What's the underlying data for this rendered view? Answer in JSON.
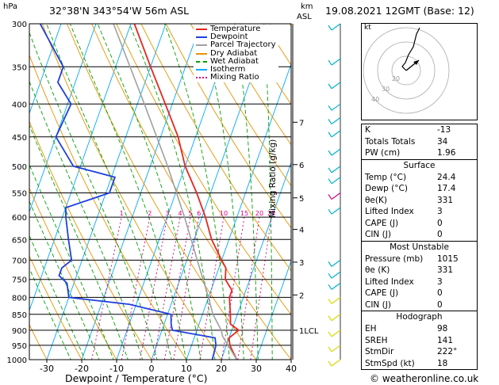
{
  "header": {
    "hpa_label": "hPa",
    "location": "32°38'N  343°54'W  56m  ASL",
    "km_label": "km",
    "asl_label": "ASL",
    "datetime": "19.08.2021  12GMT  (Base: 12)"
  },
  "legend": [
    "Temperature",
    "Dewpoint",
    "Parcel Trajectory",
    "Dry Adiabat",
    "Wet Adiabat",
    "Isotherm",
    "Mixing Ratio"
  ],
  "colors": {
    "temperature": "#e8251f",
    "dewpoint": "#1d3fe0",
    "parcel": "#a0a0a0",
    "dry_adiabat": "#e69500",
    "wet_adiabat": "#00a000",
    "isotherm": "#00aaff",
    "mixing_ratio": "#d4007f",
    "wind": "#00b4c8",
    "wind_low": "#d8d800"
  },
  "mixing_ratio_labels": [
    "1",
    "2",
    "3",
    "4",
    "5",
    "6",
    "10",
    "15",
    "20",
    "25"
  ],
  "right_axis_label": "Mixing Ratio (g/kg)",
  "km_ticks": [
    "7",
    "6",
    "5",
    "4",
    "3",
    "2",
    "1LCL"
  ],
  "x_axis_title": "Dewpoint / Temperature (°C)",
  "hodograph": {
    "label": "kt",
    "rings": [
      "40",
      "30",
      "20"
    ]
  },
  "indices": [
    {
      "label": "K",
      "value": "-13"
    },
    {
      "label": "Totals Totals",
      "value": "34"
    },
    {
      "label": "PW (cm)",
      "value": "1.96"
    }
  ],
  "surface": {
    "title": "Surface",
    "rows": [
      {
        "label": "Temp (°C)",
        "value": "24.4"
      },
      {
        "label": "Dewp (°C)",
        "value": "17.4"
      },
      {
        "label": "θe(K)",
        "value": "331"
      },
      {
        "label": "Lifted Index",
        "value": "3"
      },
      {
        "label": "CAPE (J)",
        "value": "0"
      },
      {
        "label": "CIN (J)",
        "value": "0"
      }
    ]
  },
  "most_unstable": {
    "title": "Most Unstable",
    "rows": [
      {
        "label": "Pressure (mb)",
        "value": "1015"
      },
      {
        "label": "θe (K)",
        "value": "331"
      },
      {
        "label": "Lifted Index",
        "value": "3"
      },
      {
        "label": "CAPE (J)",
        "value": "0"
      },
      {
        "label": "CIN (J)",
        "value": "0"
      }
    ]
  },
  "hodograph_box": {
    "title": "Hodograph",
    "rows": [
      {
        "label": "EH",
        "value": "98"
      },
      {
        "label": "SREH",
        "value": "141"
      },
      {
        "label": "StmDir",
        "value": "222°"
      },
      {
        "label": "StmSpd (kt)",
        "value": "18"
      }
    ]
  },
  "copyright": "© weatheronline.co.uk",
  "chart_data": {
    "type": "line",
    "title": "32°38'N  343°54'W  56m  ASL",
    "xlabel": "Dewpoint / Temperature (°C)",
    "ylabel": "hPa",
    "xlim": [
      -35,
      40
    ],
    "ylim": [
      1000,
      300
    ],
    "x_ticks": [
      "-30",
      "-20",
      "-10",
      "0",
      "10",
      "20",
      "30",
      "40"
    ],
    "pressure_levels": [
      "300",
      "350",
      "400",
      "450",
      "500",
      "550",
      "600",
      "650",
      "700",
      "750",
      "800",
      "850",
      "900",
      "950",
      "1000"
    ],
    "series": [
      {
        "name": "Temperature",
        "points": [
          [
            1000,
            24.4
          ],
          [
            950,
            21
          ],
          [
            925,
            20
          ],
          [
            900,
            22
          ],
          [
            880,
            19
          ],
          [
            850,
            18
          ],
          [
            800,
            16
          ],
          [
            780,
            16
          ],
          [
            750,
            13
          ],
          [
            720,
            12
          ],
          [
            700,
            10
          ],
          [
            650,
            5
          ],
          [
            600,
            1
          ],
          [
            550,
            -4
          ],
          [
            500,
            -10
          ],
          [
            450,
            -15
          ],
          [
            400,
            -22
          ],
          [
            350,
            -30
          ],
          [
            300,
            -39
          ]
        ]
      },
      {
        "name": "Dewpoint",
        "points": [
          [
            1000,
            17.4
          ],
          [
            950,
            17
          ],
          [
            925,
            16
          ],
          [
            900,
            3
          ],
          [
            880,
            2
          ],
          [
            850,
            1
          ],
          [
            820,
            -12
          ],
          [
            800,
            -30
          ],
          [
            780,
            -31
          ],
          [
            760,
            -32
          ],
          [
            740,
            -35
          ],
          [
            720,
            -35
          ],
          [
            700,
            -33
          ],
          [
            650,
            -36
          ],
          [
            600,
            -39
          ],
          [
            580,
            -40
          ],
          [
            550,
            -29
          ],
          [
            520,
            -29
          ],
          [
            500,
            -42
          ],
          [
            450,
            -50
          ],
          [
            400,
            -49
          ],
          [
            370,
            -55
          ],
          [
            350,
            -55
          ],
          [
            300,
            -66
          ]
        ]
      },
      {
        "name": "Parcel Trajectory",
        "points": [
          [
            1000,
            24.4
          ],
          [
            920,
            18
          ],
          [
            900,
            17
          ],
          [
            850,
            13
          ],
          [
            800,
            10
          ],
          [
            700,
            3
          ],
          [
            600,
            -5
          ],
          [
            500,
            -15
          ],
          [
            400,
            -28
          ],
          [
            300,
            -45
          ]
        ]
      }
    ]
  }
}
